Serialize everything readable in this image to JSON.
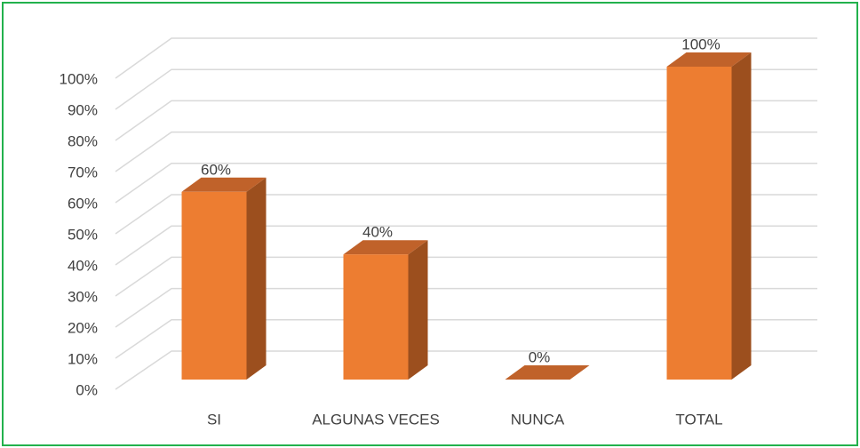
{
  "chart_data": {
    "type": "bar3d",
    "categories": [
      "SI",
      "ALGUNAS VECES",
      "NUNCA",
      "TOTAL"
    ],
    "values": [
      60,
      40,
      0,
      100
    ],
    "value_labels": [
      "60%",
      "40%",
      "0%",
      "100%"
    ],
    "color": "#ed7d31",
    "ylim": [
      0,
      100
    ],
    "yticks": [
      {
        "value": 0,
        "label": "0%"
      },
      {
        "value": 10,
        "label": "10%"
      },
      {
        "value": 20,
        "label": "20%"
      },
      {
        "value": 30,
        "label": "30%"
      },
      {
        "value": 40,
        "label": "40%"
      },
      {
        "value": 50,
        "label": "50%"
      },
      {
        "value": 60,
        "label": "60%"
      },
      {
        "value": 70,
        "label": "70%"
      },
      {
        "value": 80,
        "label": "80%"
      },
      {
        "value": 90,
        "label": "90%"
      },
      {
        "value": 100,
        "label": "100%"
      }
    ],
    "grid": true
  }
}
